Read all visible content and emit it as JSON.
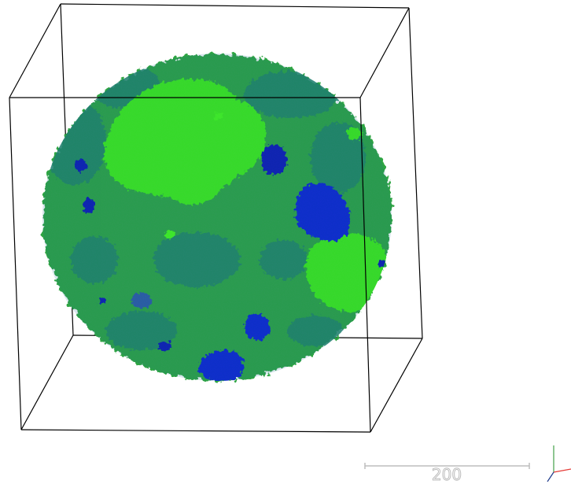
{
  "scene": {
    "background_color": "#ffffff",
    "box_color": "#000000",
    "domain_colors": {
      "base_green": "#2fa543",
      "dark_teal": "#218567",
      "light_green": "#3cf019",
      "bright_lime": "#45ff12",
      "blue": "#0a21d6",
      "deep_blue": "#0718b8",
      "steel_blue": "#2d5aa8"
    }
  },
  "scale_bar": {
    "label": "200",
    "color": "#bdbdbd"
  },
  "axes_triad": {
    "x_color": "#e53935",
    "y_color": "#43a047",
    "z_color": "#1e3a8a"
  }
}
